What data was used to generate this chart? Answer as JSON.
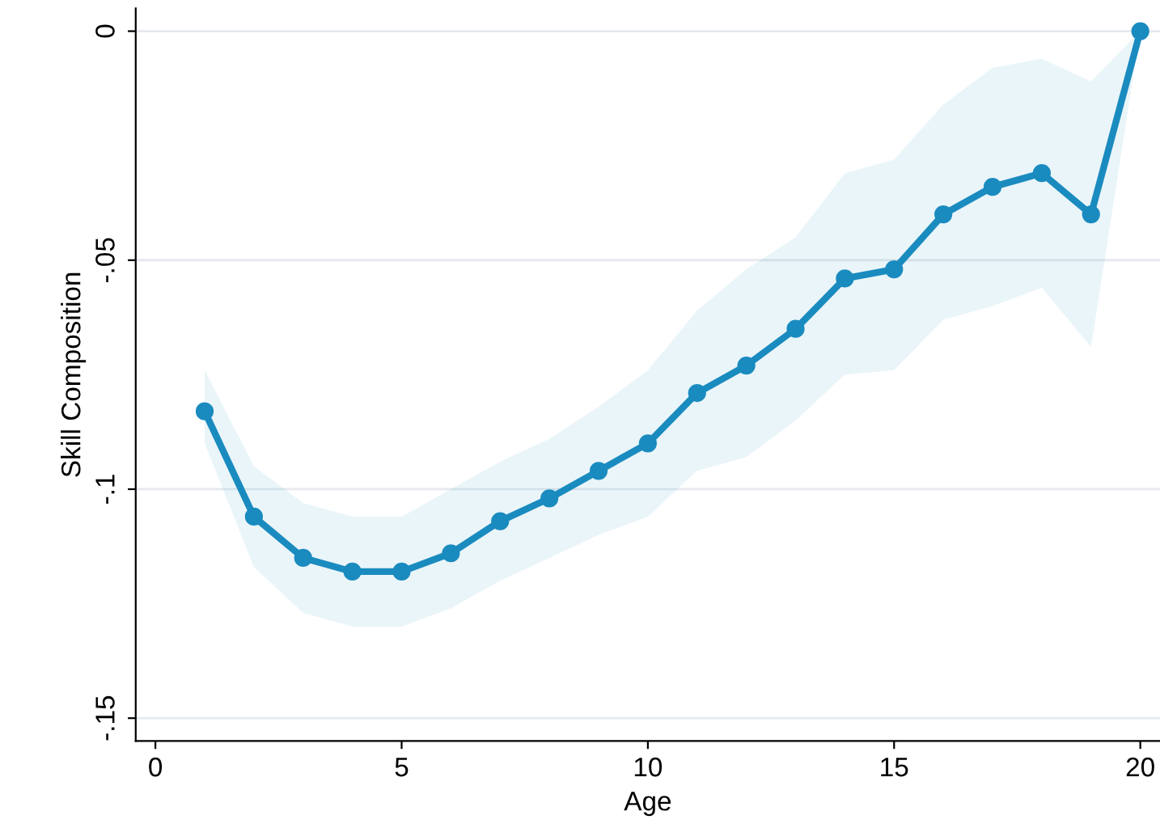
{
  "chart_data": {
    "type": "line",
    "xlabel": "Age",
    "ylabel": "Skill Composition",
    "x": [
      1,
      2,
      3,
      4,
      5,
      6,
      7,
      8,
      9,
      10,
      11,
      12,
      13,
      14,
      15,
      16,
      17,
      18,
      19,
      20
    ],
    "series": [
      {
        "color": "#1a8bbf",
        "values": [
          -0.083,
          -0.106,
          -0.115,
          -0.118,
          -0.118,
          -0.114,
          -0.107,
          -0.102,
          -0.096,
          -0.09,
          -0.079,
          -0.073,
          -0.065,
          -0.054,
          -0.052,
          -0.04,
          -0.034,
          -0.031,
          -0.04,
          0
        ],
        "lower": [
          -0.09,
          -0.117,
          -0.127,
          -0.13,
          -0.13,
          -0.126,
          -0.12,
          -0.115,
          -0.11,
          -0.106,
          -0.096,
          -0.093,
          -0.085,
          -0.075,
          -0.074,
          -0.063,
          -0.06,
          -0.056,
          -0.069,
          0
        ],
        "upper": [
          -0.074,
          -0.095,
          -0.103,
          -0.106,
          -0.106,
          -0.1,
          -0.094,
          -0.089,
          -0.082,
          -0.074,
          -0.061,
          -0.052,
          -0.045,
          -0.031,
          -0.028,
          -0.016,
          -0.008,
          -0.006,
          -0.011,
          0
        ]
      }
    ],
    "xlim": [
      -0.4,
      20.4
    ],
    "ylim": [
      -0.155,
      0.005
    ],
    "xticks": [
      0,
      5,
      10,
      15,
      20
    ],
    "yticks": [
      {
        "value": 0,
        "label": "0"
      },
      {
        "value": -0.05,
        "label": "-.05"
      },
      {
        "value": -0.1,
        "label": "-.1"
      },
      {
        "value": -0.15,
        "label": "-.15"
      }
    ],
    "grid": "y",
    "marker": "circle",
    "line_style": "solid",
    "legend": false
  }
}
